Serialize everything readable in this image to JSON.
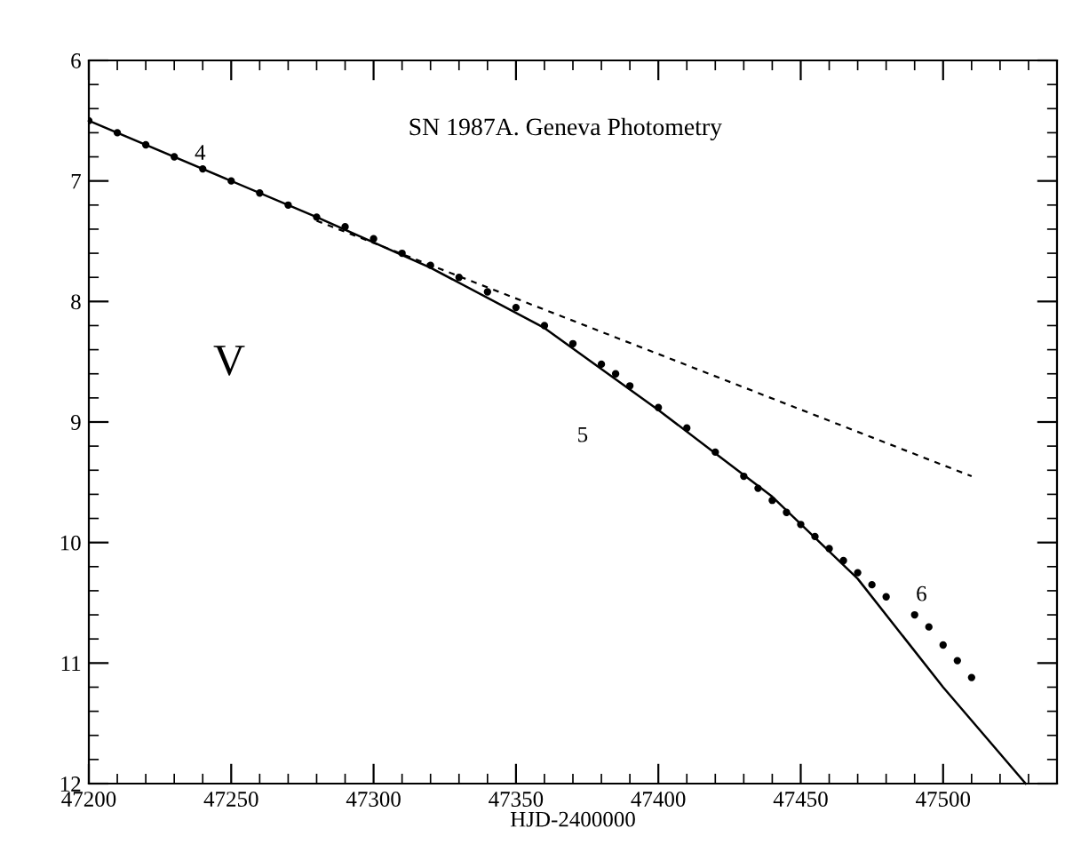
{
  "chart_data": {
    "type": "scatter",
    "title": "SN 1987A. Geneva Photometry",
    "xlabel": "HJD-2400000",
    "xlim": [
      47200,
      47540
    ],
    "xticks": [
      47200,
      47250,
      47300,
      47350,
      47400,
      47450,
      47500
    ],
    "ylim": [
      12,
      6
    ],
    "yticks": [
      6,
      7,
      8,
      9,
      10,
      11,
      12
    ],
    "grid": false,
    "legend": false,
    "annotations": [
      "4",
      "5",
      "6",
      "V"
    ],
    "series": [
      {
        "color": "#000000",
        "marker": "circle",
        "x": [
          47200,
          47210,
          47220,
          47230,
          47240,
          47250,
          47260,
          47270,
          47280,
          47290,
          47300,
          47310,
          47320,
          47330,
          47340,
          47350,
          47360,
          47370,
          47380,
          47385,
          47390,
          47400,
          47410,
          47420,
          47430,
          47435,
          47440,
          47445,
          47450,
          47455,
          47460,
          47465,
          47470,
          47475,
          47480,
          47490,
          47495,
          47500,
          47505,
          47510
        ],
        "values": [
          6.5,
          6.6,
          6.7,
          6.8,
          6.9,
          7.0,
          7.1,
          7.2,
          7.3,
          7.38,
          7.48,
          7.6,
          7.7,
          7.8,
          7.92,
          8.05,
          8.2,
          8.35,
          8.52,
          8.6,
          8.7,
          8.88,
          9.05,
          9.25,
          9.45,
          9.55,
          9.65,
          9.75,
          9.85,
          9.95,
          10.05,
          10.15,
          10.25,
          10.35,
          10.45,
          10.6,
          10.7,
          10.85,
          10.98,
          11.12
        ]
      },
      {
        "type": "line",
        "color": "#000000",
        "line_style": "solid",
        "x": [
          47200,
          47280,
          47320,
          47360,
          47400,
          47440,
          47470,
          47500,
          47529
        ],
        "values": [
          6.5,
          7.3,
          7.72,
          8.22,
          8.9,
          9.62,
          10.3,
          11.2,
          12.0
        ]
      },
      {
        "type": "line",
        "color": "#000000",
        "line_style": "dashed",
        "x": [
          47280,
          47510
        ],
        "values": [
          7.33,
          9.45
        ]
      }
    ]
  }
}
